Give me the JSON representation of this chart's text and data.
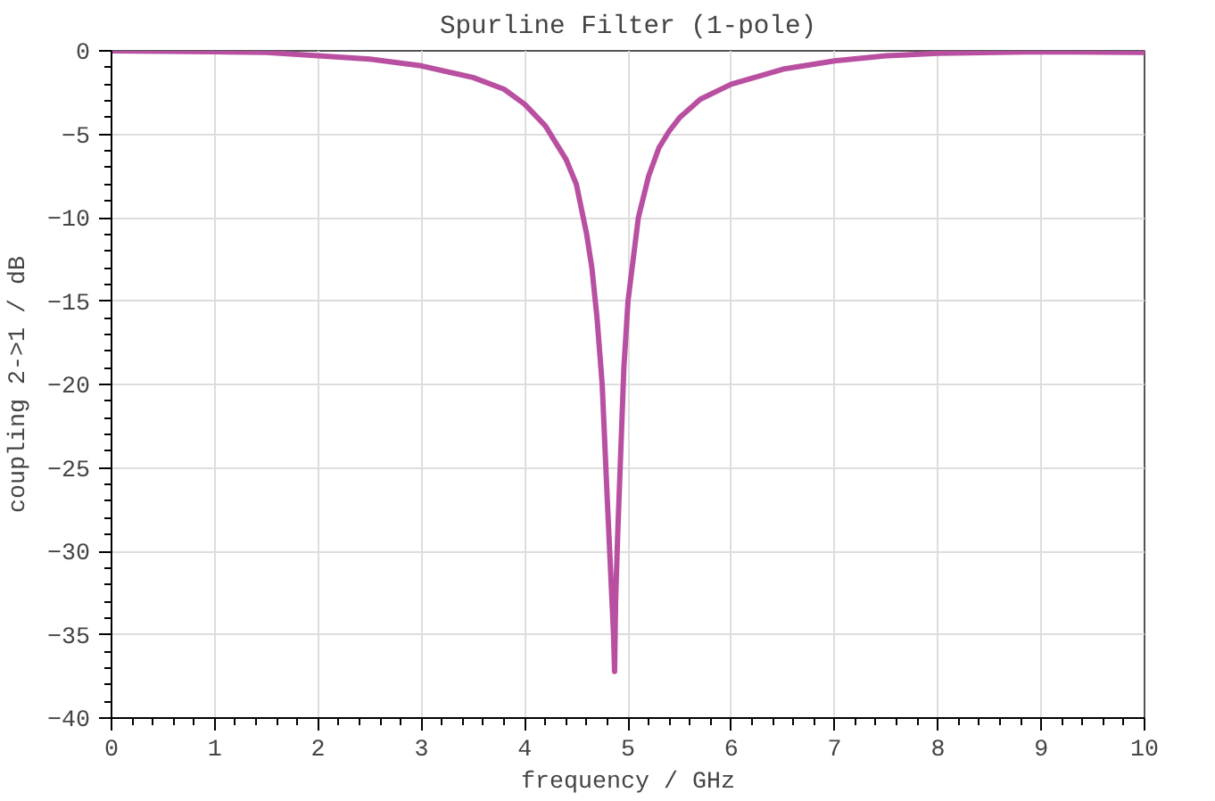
{
  "chart_data": {
    "type": "line",
    "title": "Spurline Filter (1-pole)",
    "xlabel": "frequency / GHz",
    "ylabel": "coupling 2->1 / dB",
    "xlim": [
      0,
      10
    ],
    "xticks": [
      0,
      1,
      2,
      3,
      4,
      5,
      6,
      7,
      8,
      9,
      10
    ],
    "ylim": [
      -40,
      0
    ],
    "yticks": [
      -40,
      -35,
      -30,
      -25,
      -20,
      -15,
      -10,
      -5,
      0
    ],
    "grid": true,
    "line_style": "solid",
    "series": [
      {
        "color": "#b94fa0",
        "x": [
          0,
          1,
          1.5,
          2,
          2.5,
          3,
          3.5,
          3.8,
          4,
          4.2,
          4.4,
          4.5,
          4.6,
          4.65,
          4.7,
          4.75,
          4.8,
          4.83,
          4.86,
          4.87,
          4.88,
          4.9,
          4.93,
          4.96,
          5.0,
          5.05,
          5.1,
          5.2,
          5.3,
          5.4,
          5.5,
          5.7,
          6,
          6.5,
          7,
          7.5,
          8,
          9,
          10
        ],
        "values": [
          0,
          -0.05,
          -0.1,
          -0.3,
          -0.5,
          -0.9,
          -1.6,
          -2.3,
          -3.2,
          -4.5,
          -6.5,
          -8,
          -11,
          -13,
          -16,
          -20,
          -27,
          -31,
          -35,
          -37.2,
          -33,
          -29,
          -24,
          -19,
          -15,
          -12.5,
          -10,
          -7.5,
          -5.8,
          -4.8,
          -4,
          -2.9,
          -2,
          -1.1,
          -0.6,
          -0.3,
          -0.15,
          -0.05,
          -0.1
        ]
      }
    ]
  }
}
